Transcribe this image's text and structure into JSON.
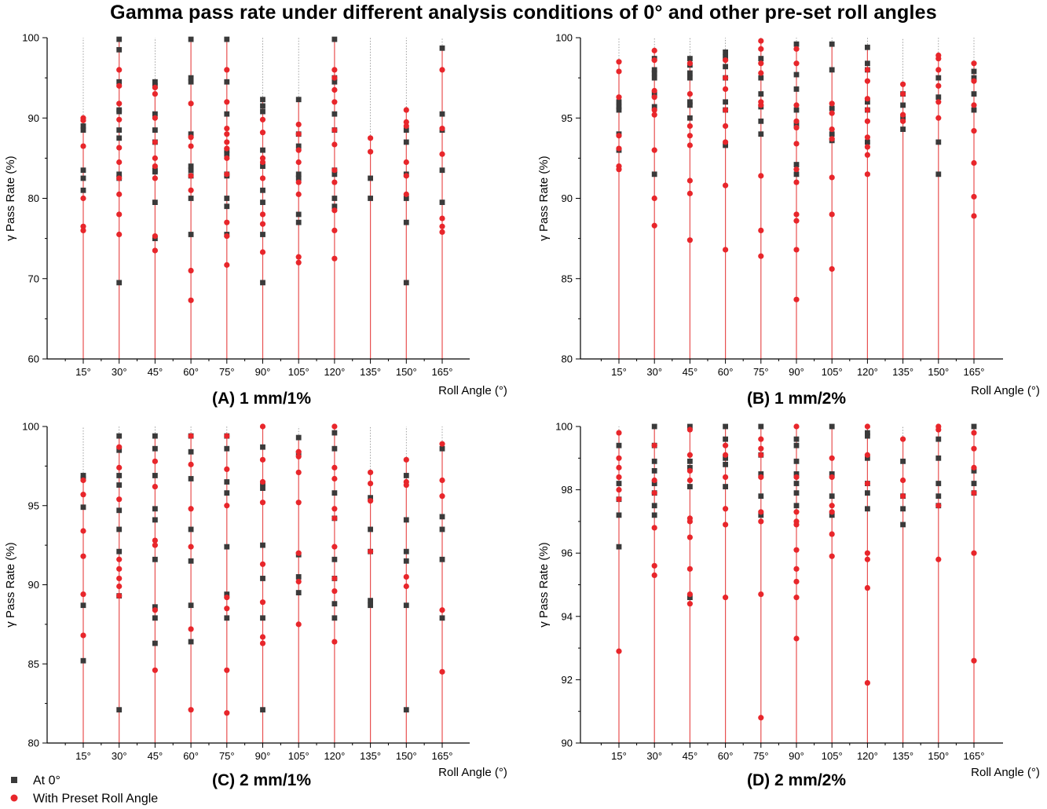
{
  "title": "Gamma pass rate under different analysis conditions of 0° and other pre-set roll angles",
  "legend": [
    {
      "name": "At 0°",
      "marker": "square",
      "color": "#3a3a3a"
    },
    {
      "name": "With Preset Roll Angle",
      "marker": "circle",
      "color": "#e8262b"
    }
  ],
  "colors": {
    "square": "#3a3a3a",
    "circle": "#e8262b",
    "stem": "#e85050",
    "dashed": "#888888"
  },
  "chart_data": [
    {
      "type": "scatter",
      "label": "(A) 1 mm/1%",
      "xlabel": "Roll Angle (°)",
      "ylabel": "γ Pass Rate (%)",
      "categories": [
        "15°",
        "30°",
        "45°",
        "60°",
        "75°",
        "90°",
        "105°",
        "120°",
        "135°",
        "150°",
        "165°"
      ],
      "ylim": [
        60,
        100
      ],
      "yticks": [
        60,
        70,
        80,
        90,
        100
      ],
      "series": [
        {
          "name": "At 0°",
          "values": [
            [
              89,
              88.5,
              83.5,
              82.5,
              81
            ],
            [
              99.8,
              98.5,
              94.5,
              91,
              90.8,
              88.5,
              87.5,
              83,
              82.5,
              69.5
            ],
            [
              94.5,
              94,
              90.5,
              88.5,
              87,
              83.5,
              83.3,
              79.5,
              75
            ],
            [
              99.8,
              95,
              94.5,
              88,
              84,
              83.5,
              82.8,
              80,
              75.5
            ],
            [
              99.8,
              94.5,
              90.5,
              86,
              85.5,
              83,
              82.8,
              80,
              79,
              75.5
            ],
            [
              92.3,
              91.5,
              90.8,
              86,
              84,
              81,
              79.5,
              75.5,
              69.5
            ],
            [
              92.3,
              88,
              86.5,
              83,
              82.5,
              78,
              77
            ],
            [
              99.8,
              95,
              94.5,
              90.5,
              88.5,
              83.5,
              83,
              80,
              79
            ],
            [
              82.5,
              80
            ],
            [
              88.5,
              87,
              83,
              80,
              77,
              69.5
            ],
            [
              98.7,
              90.5,
              88.5,
              83.5,
              79.5
            ]
          ]
        },
        {
          "name": "With Preset Roll Angle",
          "values": [
            [
              90,
              89.7,
              86.5,
              80,
              76.5,
              76
            ],
            [
              96,
              94,
              91.8,
              89.8,
              86.3,
              84.5,
              82.5,
              80.5,
              78,
              75.5
            ],
            [
              93.8,
              93,
              90,
              87,
              85,
              84,
              82.5,
              75.3,
              73.5
            ],
            [
              91.8,
              87.6,
              86.5,
              82.8,
              81,
              71,
              67.3
            ],
            [
              96,
              92,
              88.7,
              88,
              87,
              86.2,
              85,
              83,
              77,
              75.3,
              71.7
            ],
            [
              89.8,
              88.2,
              85,
              84.5,
              82.5,
              78,
              76.8,
              73.3
            ],
            [
              89.2,
              88,
              86,
              84.5,
              82,
              80.5,
              72.7,
              72
            ],
            [
              96,
              95,
              93.5,
              92,
              88.5,
              86.7,
              83.5,
              82,
              78.5,
              76,
              72.5
            ],
            [
              87.5,
              85.8
            ],
            [
              91,
              89.5,
              89,
              84.5,
              82.8,
              80.5
            ],
            [
              96,
              88.7,
              85.5,
              77.5,
              76.5,
              75.8
            ]
          ]
        }
      ]
    },
    {
      "type": "scatter",
      "label": "(B) 1 mm/2%",
      "xlabel": "Roll Angle (°)",
      "ylabel": "γ Pass Rate (%)",
      "categories": [
        "15°",
        "30°",
        "45°",
        "60°",
        "75°",
        "90°",
        "105°",
        "120°",
        "135°",
        "150°",
        "165°"
      ],
      "ylim": [
        80,
        100
      ],
      "yticks": [
        80,
        85,
        90,
        95,
        100
      ],
      "series": [
        {
          "name": "At 0°",
          "values": [
            [
              96,
              95.7,
              95.5,
              94,
              93
            ],
            [
              98.7,
              98,
              97.8,
              97.5,
              96.5,
              95.7,
              91.5
            ],
            [
              98.7,
              98.3,
              97.8,
              97.5,
              96,
              95.8,
              95
            ],
            [
              99.1,
              98.8,
              98.2,
              97.5,
              96,
              95.5,
              93.3
            ],
            [
              98.7,
              97.5,
              96.5,
              95.7,
              94.8,
              94
            ],
            [
              99.6,
              97.7,
              96.8,
              95.5,
              94.6,
              92.1,
              91.5
            ],
            [
              99.6,
              98,
              95.6,
              94,
              93.6
            ],
            [
              99.4,
              98.4,
              98,
              96,
              95.5,
              93.5
            ],
            [
              96.5,
              95.8,
              95,
              94.3
            ],
            [
              97.5,
              96.3,
              93.5,
              91.5
            ],
            [
              97.9,
              97.5,
              96.5,
              95.5
            ]
          ]
        },
        {
          "name": "With Preset Roll Angle",
          "values": [
            [
              98.5,
              97.9,
              96.3,
              93.9,
              93.1,
              92,
              91.8
            ],
            [
              99.2,
              98.6,
              96.7,
              96.3,
              95.5,
              95.2,
              93,
              90,
              88.3
            ],
            [
              98.4,
              96.5,
              94.5,
              93.9,
              93.3,
              91.1,
              90.3,
              87.4
            ],
            [
              98.6,
              97.5,
              96.8,
              95.5,
              94.5,
              93.5,
              90.8,
              86.8
            ],
            [
              99.8,
              99.3,
              98.4,
              97.8,
              96,
              95.8,
              91.4,
              88,
              86.4
            ],
            [
              99.3,
              98.4,
              95.8,
              94.8,
              94.4,
              93.4,
              91.8,
              91,
              89,
              88.6,
              86.8,
              83.7
            ],
            [
              95.9,
              95.3,
              94.3,
              93.7,
              91.3,
              89,
              85.6
            ],
            [
              98,
              97.3,
              96.2,
              95.5,
              94.8,
              93.8,
              93.2,
              92.7,
              91.5
            ],
            [
              97.1,
              96.5,
              95.2,
              94.8
            ],
            [
              98.9,
              98.7,
              98,
              97,
              96,
              95
            ],
            [
              98.4,
              97.3,
              95.8,
              94.2,
              92.2,
              90.1,
              88.9
            ]
          ]
        }
      ]
    },
    {
      "type": "scatter",
      "label": "(C) 2 mm/1%",
      "xlabel": "Roll Angle (°)",
      "ylabel": "γ Pass Rate (%)",
      "categories": [
        "15°",
        "30°",
        "45°",
        "60°",
        "75°",
        "90°",
        "105°",
        "120°",
        "135°",
        "150°",
        "165°"
      ],
      "ylim": [
        80,
        100
      ],
      "yticks": [
        80,
        85,
        90,
        95,
        100
      ],
      "series": [
        {
          "name": "At 0°",
          "values": [
            [
              96.9,
              96.7,
              94.9,
              88.7,
              85.2
            ],
            [
              99.4,
              98.5,
              96.9,
              96.3,
              94.7,
              93.5,
              92.1,
              89.3,
              82.1
            ],
            [
              99.4,
              98.6,
              96.9,
              94.8,
              94.1,
              91.6,
              88.6,
              87.9,
              86.3
            ],
            [
              99.4,
              98.4,
              96.7,
              93.5,
              91.5,
              88.7,
              86.4
            ],
            [
              99.4,
              98.6,
              96.5,
              95.8,
              92.4,
              89.4,
              87.9
            ],
            [
              98.7,
              96.4,
              96.1,
              92.5,
              90.4,
              87.9,
              82.1
            ],
            [
              99.3,
              98.3,
              91.9,
              90.5,
              89.5
            ],
            [
              99.6,
              98.6,
              95.8,
              94.2,
              91.6,
              90.4,
              88.8,
              87.9
            ],
            [
              95.5,
              93.5,
              92.1,
              89,
              88.7
            ],
            [
              96.9,
              94.1,
              92.1,
              91.5,
              88.7,
              82.1
            ],
            [
              98.6,
              94.3,
              93.5,
              91.6,
              87.9
            ]
          ]
        },
        {
          "name": "With Preset Roll Angle",
          "values": [
            [
              96.6,
              95.7,
              93.4,
              91.8,
              89.4,
              86.8
            ],
            [
              98.7,
              97.4,
              95.4,
              91.6,
              91,
              90.4,
              89.9,
              89.3
            ],
            [
              97.8,
              96.2,
              92.8,
              92.5,
              88.4,
              84.6
            ],
            [
              99.4,
              97.6,
              94.8,
              92.4,
              87.2,
              82.1
            ],
            [
              99.4,
              97.3,
              95,
              89.2,
              88.5,
              84.6,
              81.9
            ],
            [
              100,
              97.9,
              96.5,
              95.2,
              91.3,
              88.9,
              86.7,
              86.3
            ],
            [
              98.4,
              98.1,
              97.1,
              95.2,
              92,
              90.2,
              87.5
            ],
            [
              100,
              97.4,
              96.7,
              94.8,
              94.2,
              92.4,
              90.4,
              89.6,
              86.4
            ],
            [
              97.1,
              96.4,
              95.3,
              92.1
            ],
            [
              97.9,
              96.5,
              96.3,
              90.5,
              89.9
            ],
            [
              98.9,
              96.6,
              95.6,
              88.4,
              84.5
            ]
          ]
        }
      ]
    },
    {
      "type": "scatter",
      "label": "(D) 2 mm/2%",
      "xlabel": "Roll Angle (°)",
      "ylabel": "γ Pass Rate (%)",
      "categories": [
        "15°",
        "30°",
        "45°",
        "60°",
        "75°",
        "90°",
        "105°",
        "120°",
        "135°",
        "150°",
        "165°"
      ],
      "ylim": [
        90,
        100
      ],
      "yticks": [
        90,
        92,
        94,
        96,
        98,
        100
      ],
      "series": [
        {
          "name": "At 0°",
          "values": [
            [
              99.4,
              98.2,
              97.7,
              97.2,
              96.2
            ],
            [
              100,
              99.4,
              98.9,
              98.6,
              98.2,
              97.9,
              97.5,
              97.2
            ],
            [
              100,
              98.9,
              98.7,
              98.1,
              94.6
            ],
            [
              100,
              99.6,
              99,
              98.8,
              98.1
            ],
            [
              100,
              99.1,
              98.5,
              97.8,
              97.2
            ],
            [
              99.6,
              99.4,
              98.9,
              98.5,
              98.2,
              97.9,
              97.5
            ],
            [
              100,
              98.5,
              97.8,
              97.2
            ],
            [
              99.8,
              99.7,
              99,
              98.2,
              97.9,
              97.4
            ],
            [
              98.9,
              97.8,
              97.4,
              96.9
            ],
            [
              99.6,
              99,
              98.2,
              97.8,
              97.5
            ],
            [
              100,
              98.6,
              98.2,
              97.9
            ]
          ]
        },
        {
          "name": "With Preset Roll Angle",
          "values": [
            [
              99.8,
              99,
              98.7,
              98.4,
              98,
              97.7,
              92.9
            ],
            [
              99.4,
              98.3,
              97.9,
              96.8,
              95.6,
              95.3
            ],
            [
              99.9,
              99.1,
              98.6,
              98.3,
              97.1,
              97,
              96.5,
              95.5,
              94.7,
              94.4
            ],
            [
              99.4,
              99.1,
              98.4,
              97.4,
              96.9,
              94.6
            ],
            [
              99.6,
              99.3,
              99.1,
              98.4,
              97.3,
              97,
              94.7,
              90.8
            ],
            [
              100,
              98.4,
              97.3,
              97,
              96.9,
              96.1,
              95.5,
              95.1,
              94.6,
              93.3
            ],
            [
              99,
              98.4,
              97.5,
              97.3,
              96.6,
              95.9
            ],
            [
              100,
              99.1,
              98.2,
              96,
              95.8,
              94.9,
              91.9
            ],
            [
              99.6,
              98.3,
              97.8
            ],
            [
              100,
              99.9,
              97.5,
              95.8
            ],
            [
              99.8,
              99.3,
              98.7,
              97.9,
              96,
              92.6
            ]
          ]
        }
      ]
    }
  ]
}
